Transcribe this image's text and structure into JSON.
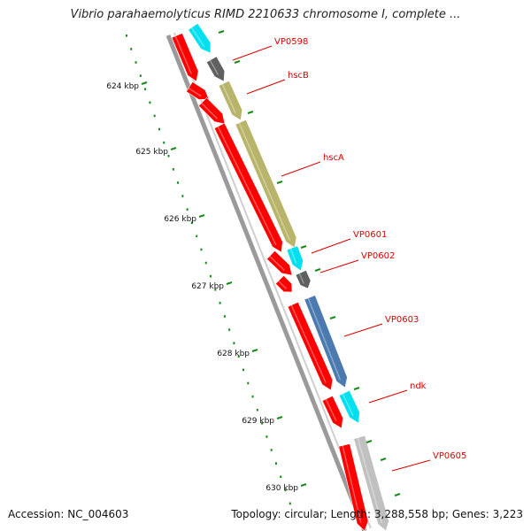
{
  "title": "Vibrio parahaemolyticus RIMD 2210633 chromosome I, complete ...",
  "footer": {
    "accession": "Accession: NC_004603",
    "topology": "Topology: circular; Length: 3,288,558 bp; Genes: 3,223"
  },
  "ruler": {
    "ticks": [
      "624 kbp",
      "625 kbp",
      "626 kbp",
      "627 kbp",
      "628 kbp",
      "629 kbp",
      "630 kbp"
    ]
  },
  "colors": {
    "backbone": "#8a8a8a",
    "tick_green": "#1a8a1a",
    "label_red": "#dd0000",
    "gene_red": "#ff0000",
    "gene_cyan": "#00e0ee",
    "gene_darkgray": "#606060",
    "gene_olive": "#b8b46a",
    "gene_steelblue": "#4a7ab0",
    "gene_lightgray": "#c0c0c0"
  },
  "genes": [
    {
      "label": "VP0598"
    },
    {
      "label": "hscB"
    },
    {
      "label": "hscA"
    },
    {
      "label": "VP0601"
    },
    {
      "label": "VP0602"
    },
    {
      "label": "VP0603"
    },
    {
      "label": "ndk"
    },
    {
      "label": "VP0605"
    }
  ]
}
